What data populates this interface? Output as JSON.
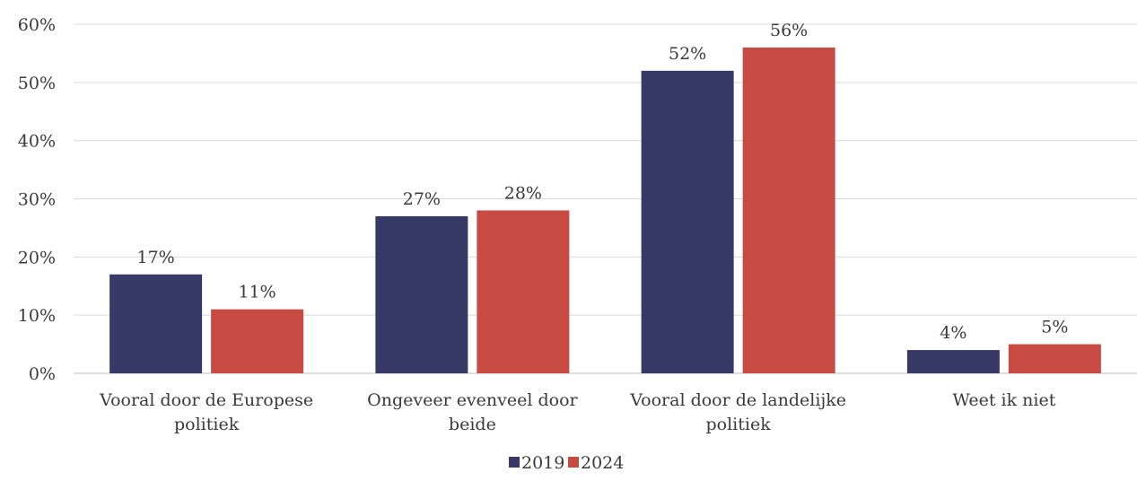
{
  "chart_data": {
    "type": "bar",
    "categories": [
      [
        "Vooral door de Europese",
        "politiek"
      ],
      [
        "Ongeveer evenveel door",
        "beide"
      ],
      [
        "Vooral door de landelijke",
        "politiek"
      ],
      [
        "Weet ik niet"
      ]
    ],
    "series": [
      {
        "name": "2019",
        "values": [
          17,
          27,
          52,
          4
        ],
        "labels": [
          "17%",
          "27%",
          "52%",
          "4%"
        ],
        "color": "#373a66"
      },
      {
        "name": "2024",
        "values": [
          11,
          28,
          56,
          5
        ],
        "labels": [
          "11%",
          "28%",
          "56%",
          "5%"
        ],
        "color": "#c84b43"
      }
    ],
    "yticks": [
      "0%",
      "10%",
      "20%",
      "30%",
      "40%",
      "50%",
      "60%"
    ],
    "ylim": [
      0,
      60
    ],
    "grid": true,
    "legend": "bottom-center",
    "title": "",
    "xlabel": "",
    "ylabel": ""
  }
}
